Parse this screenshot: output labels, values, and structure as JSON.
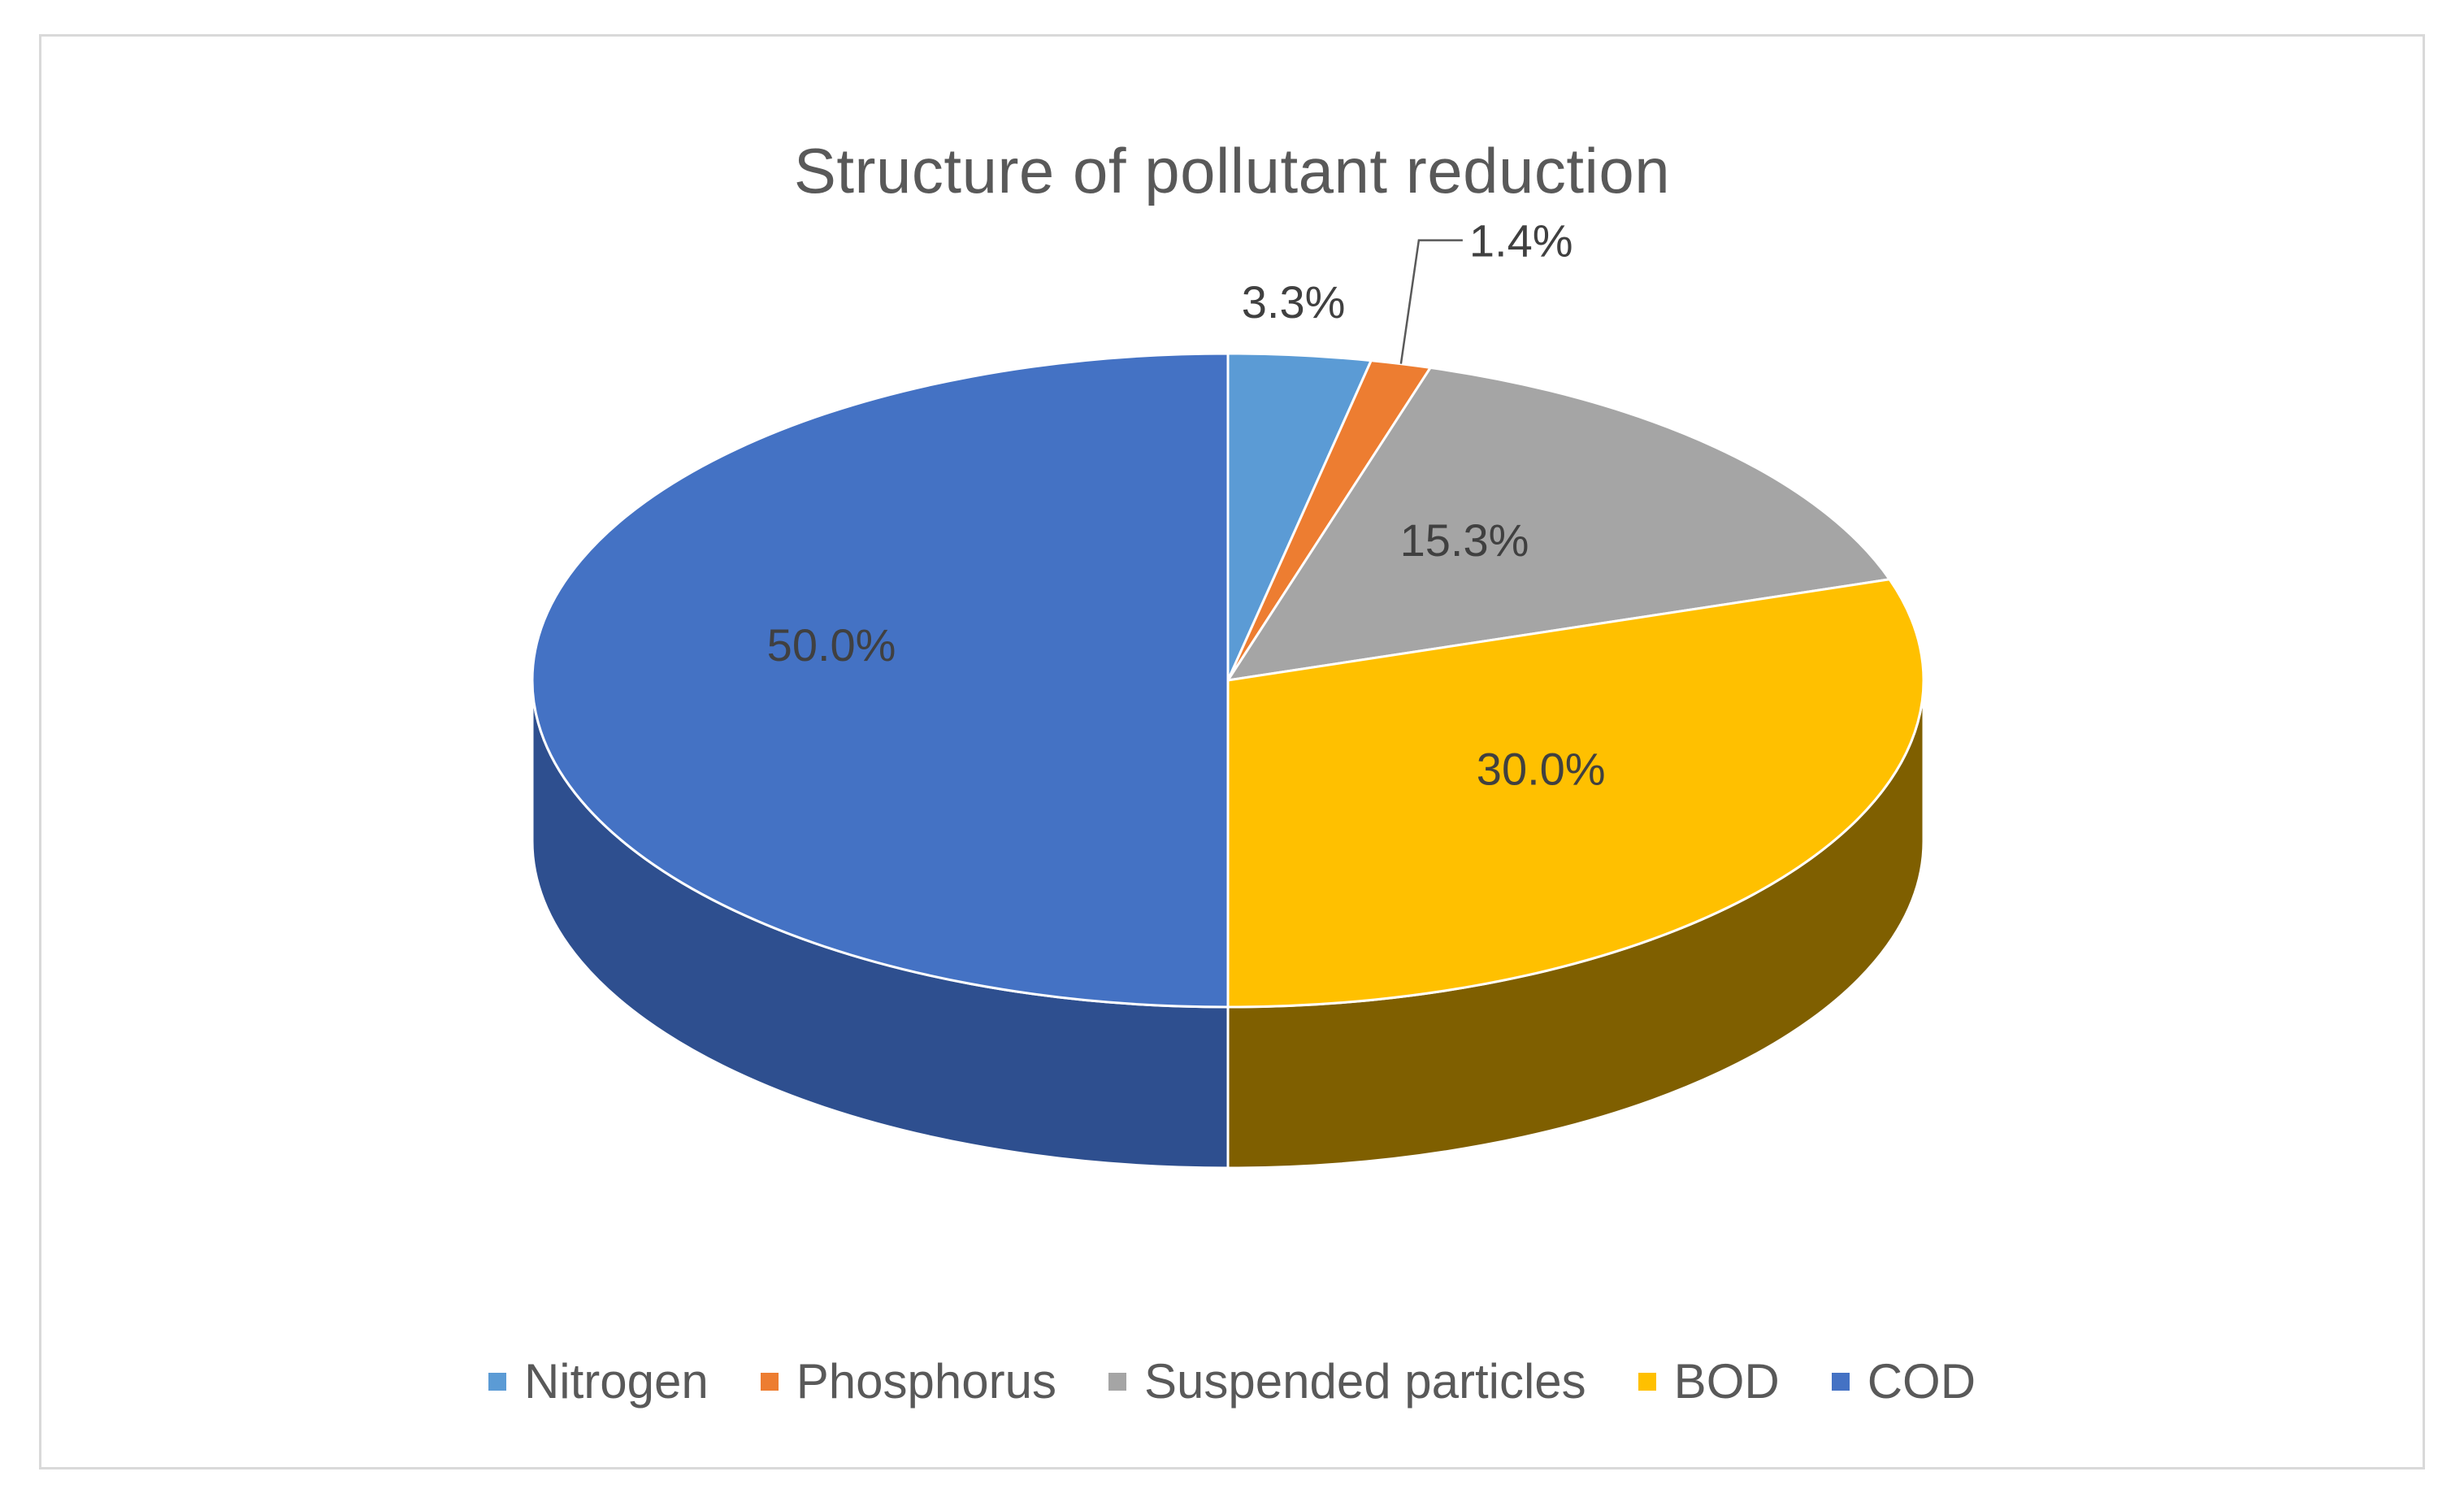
{
  "chart_data": {
    "type": "pie",
    "title": "Structure of pollutant reduction",
    "categories": [
      "Nitrogen",
      "Phosphorus",
      "Suspended particles",
      "BOD",
      "COD"
    ],
    "values": [
      3.3,
      1.4,
      15.3,
      30.0,
      50.0
    ],
    "data_labels": [
      "3.3%",
      "1.4%",
      "15.3%",
      "30.0%",
      "50.0%"
    ],
    "colors": [
      "#5b9bd5",
      "#ed7d31",
      "#a5a5a5",
      "#ffc000",
      "#4472c4"
    ],
    "side_colors": [
      "#3a6f9f",
      "#b35a1f",
      "#7a7a7a",
      "#7f5f00",
      "#2e4f8f"
    ],
    "legend_position": "bottom",
    "three_d": true
  }
}
